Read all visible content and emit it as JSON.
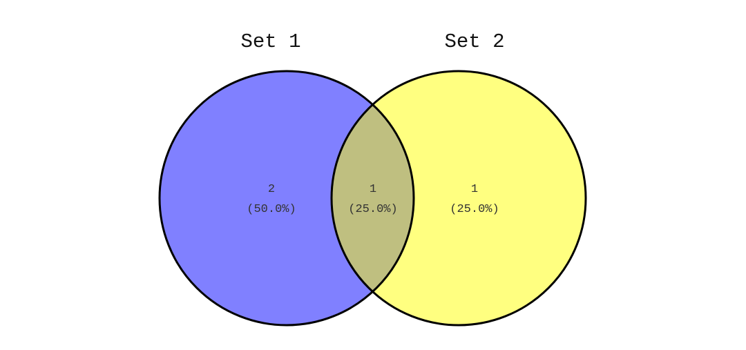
{
  "sets": [
    {
      "label": "Set 1",
      "color": "#8080ff"
    },
    {
      "label": "Set 2",
      "color": "#ffff80"
    }
  ],
  "overlap_color": "#bfbf80",
  "outline_color": "#000000",
  "regions": {
    "set1_only": {
      "count": "2",
      "percent": "(50.0%)"
    },
    "both": {
      "count": "1",
      "percent": "(25.0%)"
    },
    "set2_only": {
      "count": "1",
      "percent": "(25.0%)"
    }
  }
}
